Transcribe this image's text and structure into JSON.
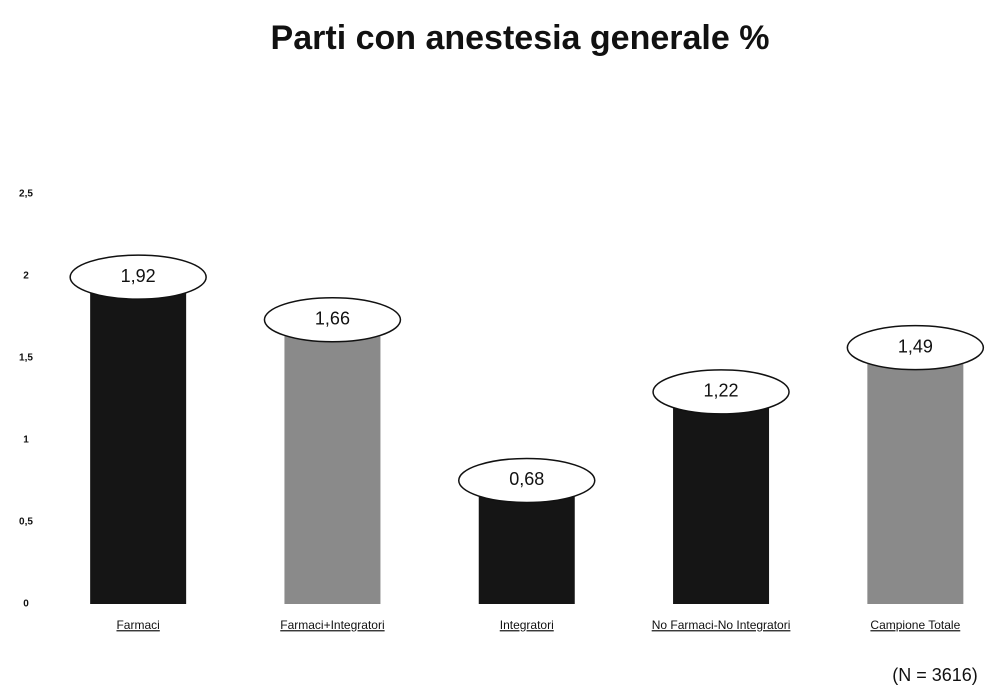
{
  "chart_data": {
    "type": "bar",
    "title": "Parti con anestesia generale %",
    "categories": [
      "Farmaci",
      "Farmaci+Integratori",
      "Integratori",
      "No Farmaci-No Integratori",
      "Campione Totale"
    ],
    "values": [
      1.92,
      1.66,
      0.68,
      1.22,
      1.49
    ],
    "value_labels": [
      "1,92",
      "1,66",
      "0,68",
      "1,22",
      "1,49"
    ],
    "colors": [
      "#151515",
      "#8a8a8a",
      "#151515",
      "#151515",
      "#8a8a8a"
    ],
    "ylim": [
      0,
      2.5
    ],
    "yticks": [
      0,
      {
        "value": 0.5,
        "label": "0,5"
      },
      1,
      {
        "value": 1.5,
        "label": "1,5"
      },
      2,
      {
        "value": 2.5,
        "label": "2,5"
      }
    ],
    "grid": false,
    "note": "(N = 3616)"
  }
}
